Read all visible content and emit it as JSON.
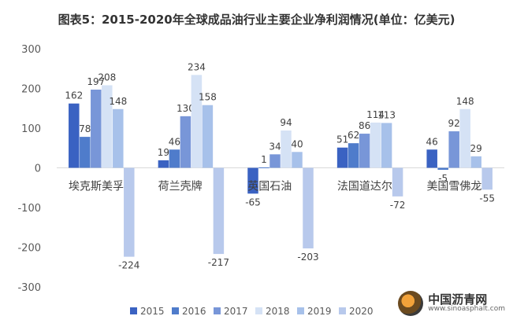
{
  "title": "图表5：2015-2020年全球成品油行业主要企业净利润情况(单位：亿美元)",
  "watermark": {
    "name": "中国沥青网",
    "url": "www.sinoasphalt.com"
  },
  "colors": {
    "2015": "#3a62c2",
    "2016": "#4f7ccb",
    "2017": "#7896d8",
    "2018": "#d5e2f5",
    "2019": "#a7c1ea",
    "2020": "#b8c9ec",
    "axis_text": "#595959",
    "grid": "#d9d9d9"
  },
  "chart_data": {
    "type": "bar",
    "title": "图表5：2015-2020年全球成品油行业主要企业净利润情况(单位：亿美元)",
    "ylim": [
      -300,
      300
    ],
    "yticks": [
      -300,
      -200,
      -100,
      0,
      100,
      200,
      300
    ],
    "grid": false,
    "legend_position": "bottom",
    "categories": [
      "埃克斯美孚",
      "荷兰壳牌",
      "英国石油",
      "法国道达尔",
      "美国雪佛龙"
    ],
    "series": [
      {
        "name": "2015",
        "values": [
          162,
          19,
          -65,
          51,
          46
        ]
      },
      {
        "name": "2016",
        "values": [
          78,
          46,
          1,
          62,
          -5
        ]
      },
      {
        "name": "2017",
        "values": [
          197,
          130,
          34,
          86,
          92
        ]
      },
      {
        "name": "2018",
        "values": [
          208,
          234,
          94,
          114,
          148
        ]
      },
      {
        "name": "2019",
        "values": [
          148,
          158,
          40,
          113,
          29
        ]
      },
      {
        "name": "2020",
        "values": [
          -224,
          -217,
          -203,
          -72,
          -55
        ]
      }
    ],
    "data_labels": [
      [
        "162",
        "78",
        "197",
        "208",
        "148",
        "-224"
      ],
      [
        "19",
        "46",
        "130",
        "234",
        "158",
        "-217"
      ],
      [
        "-65",
        "1",
        "34",
        "94",
        "40",
        "-203"
      ],
      [
        "51",
        "62",
        "86",
        "114",
        "113",
        "-72"
      ],
      [
        "46",
        "-5",
        "92",
        "148",
        "29",
        "-55"
      ]
    ]
  }
}
